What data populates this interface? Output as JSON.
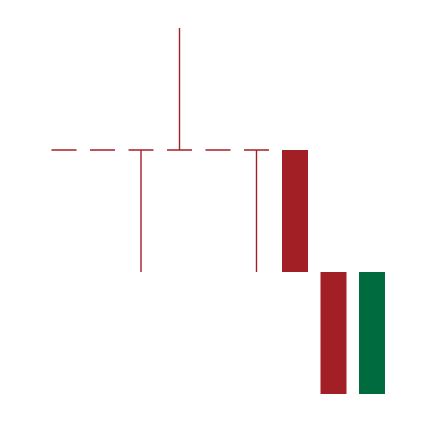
{
  "chart_data": {
    "type": "candlestick",
    "title": "",
    "xlabel": "",
    "ylabel": "",
    "grid": false,
    "legend": "none",
    "y_range": [
      0,
      10
    ],
    "candles": [
      {
        "open": 6,
        "high": 6,
        "low": 6,
        "close": 6,
        "direction": "doji"
      },
      {
        "open": 6,
        "high": 6,
        "low": 6,
        "close": 6,
        "direction": "doji"
      },
      {
        "open": 6,
        "high": 6,
        "low": 2,
        "close": 6,
        "direction": "doji"
      },
      {
        "open": 6,
        "high": 10,
        "low": 6,
        "close": 6,
        "direction": "doji"
      },
      {
        "open": 6,
        "high": 6,
        "low": 6,
        "close": 6,
        "direction": "doji"
      },
      {
        "open": 6,
        "high": 6,
        "low": 2,
        "close": 6,
        "direction": "doji"
      },
      {
        "open": 6,
        "high": 6,
        "low": 2,
        "close": 2,
        "direction": "down"
      },
      {
        "open": 2,
        "high": 2,
        "low": -2,
        "close": -2,
        "direction": "down"
      },
      {
        "open": -2,
        "high": 2,
        "low": -2,
        "close": 2,
        "direction": "up"
      }
    ],
    "colors": {
      "down": "#a31f26",
      "up": "#006b3f",
      "doji": "#a31f26"
    }
  }
}
